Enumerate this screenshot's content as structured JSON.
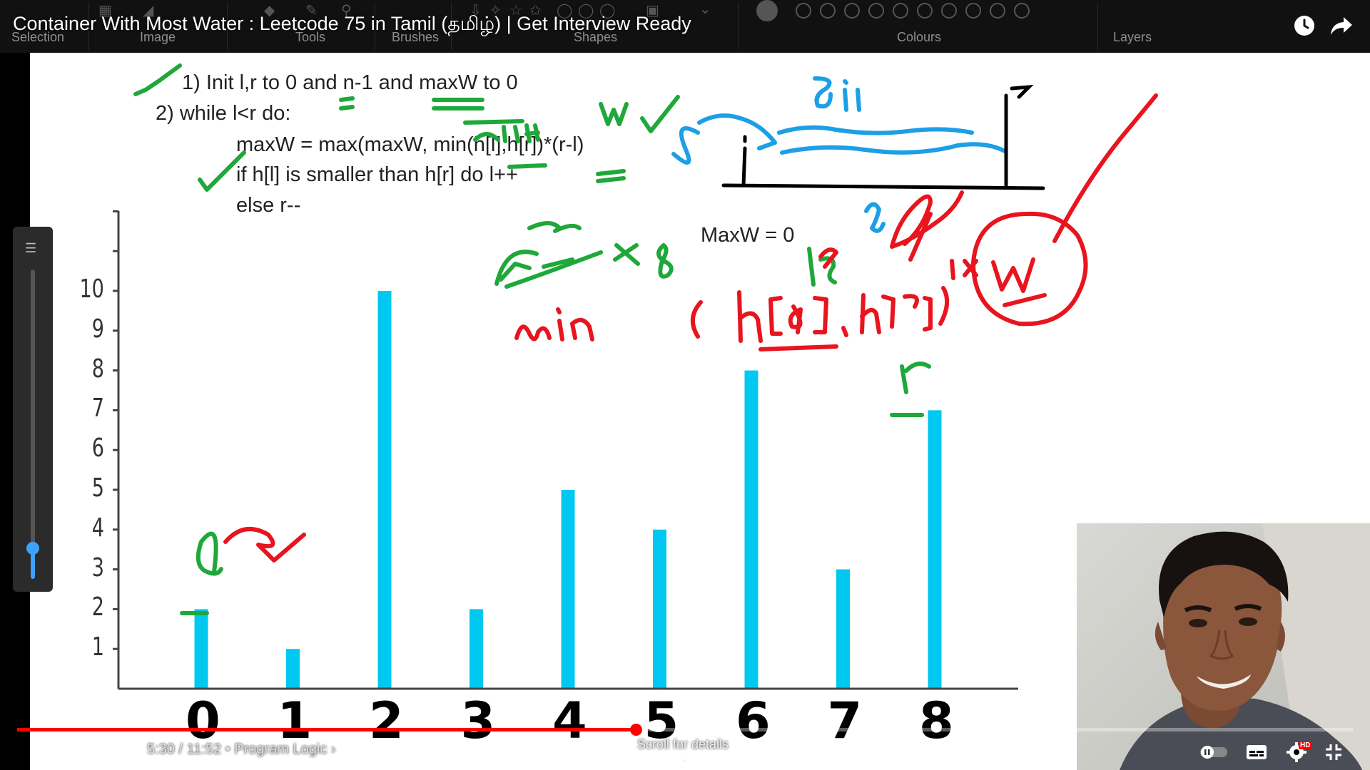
{
  "window": {
    "title": "Container With Most Water : Leetcode 75 in Tamil (தமிழ்) | Get Interview Ready"
  },
  "toolbar": {
    "groups": [
      "Selection",
      "Image",
      "Tools",
      "Brushes",
      "Shapes",
      "Colours",
      "Layers"
    ]
  },
  "algorithm": {
    "step1": "1) Init l,r to 0 and n-1 and maxW to 0",
    "step2": "2) while l<r do:",
    "step3": "maxW = max(maxW, min(h[l],h[r])*(r-l)",
    "step4": "if h[l] is smaller than h[r] do l++",
    "step5": "else r--"
  },
  "chart_data": {
    "type": "bar",
    "categories": [
      "0",
      "1",
      "2",
      "3",
      "4",
      "5",
      "6",
      "7",
      "8"
    ],
    "values": [
      2,
      1,
      10,
      2,
      5,
      4,
      8,
      3,
      7
    ],
    "yticks": [
      "1",
      "2",
      "3",
      "4",
      "5",
      "6",
      "7",
      "8",
      "9",
      "10"
    ],
    "ylim": [
      0,
      12
    ],
    "bar_color": "#00c8f0",
    "annotation_label": "MaxW = 0"
  },
  "handwriting_colors": {
    "green": "#1fa83a",
    "red": "#e8141e",
    "blue": "#1d9fe6",
    "black": "#000000"
  },
  "zoom_slider": {
    "level": 0.06
  },
  "player": {
    "time": "5:30 / 11:52",
    "chapter": "Program Logic",
    "progress": 0.463,
    "scroll_hint": "Scroll for details",
    "hd_badge": "HD",
    "colors": {
      "progress": "#ff0000"
    }
  }
}
